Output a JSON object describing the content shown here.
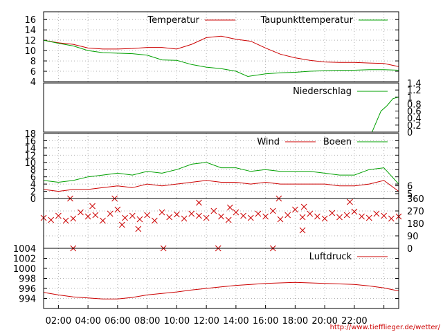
{
  "colors": {
    "red": "#cc0000",
    "green": "#00a000",
    "grid": "#b0b0b0",
    "frame": "#000000"
  },
  "footer": {
    "url": "http://www.tiefflieger.de/wetter/"
  },
  "chart_data": [
    {
      "id": "temperature",
      "type": "line",
      "title": "",
      "x_range": [
        0,
        24
      ],
      "ylim": [
        4,
        17.5
      ],
      "y_ticks": [
        4,
        6,
        8,
        10,
        12,
        14,
        16
      ],
      "grid": true,
      "legend_position": "top",
      "series": [
        {
          "name": "Temperatur",
          "color": "#cc0000",
          "points": [
            [
              0,
              12
            ],
            [
              1,
              11.5
            ],
            [
              2,
              11.2
            ],
            [
              3,
              10.5
            ],
            [
              4,
              10.3
            ],
            [
              5,
              10.3
            ],
            [
              6,
              10.4
            ],
            [
              7,
              10.6
            ],
            [
              8,
              10.6
            ],
            [
              9,
              10.3
            ],
            [
              10,
              11.2
            ],
            [
              11,
              12.5
            ],
            [
              12,
              12.8
            ],
            [
              13,
              12.2
            ],
            [
              14,
              11.8
            ],
            [
              15,
              10.5
            ],
            [
              16,
              9.3
            ],
            [
              17,
              8.6
            ],
            [
              18,
              8.1
            ],
            [
              19,
              7.8
            ],
            [
              20,
              7.7
            ],
            [
              21,
              7.7
            ],
            [
              22,
              7.6
            ],
            [
              23,
              7.5
            ],
            [
              24,
              6.9
            ]
          ]
        },
        {
          "name": "Taupunkttemperatur",
          "color": "#00a000",
          "points": [
            [
              0,
              12
            ],
            [
              1,
              11.4
            ],
            [
              2,
              10.9
            ],
            [
              3,
              10.0
            ],
            [
              4,
              9.6
            ],
            [
              5,
              9.5
            ],
            [
              6,
              9.4
            ],
            [
              7,
              9.1
            ],
            [
              8,
              8.2
            ],
            [
              9,
              8.1
            ],
            [
              10,
              7.3
            ],
            [
              11,
              6.8
            ],
            [
              12,
              6.5
            ],
            [
              13,
              6.0
            ],
            [
              13.8,
              5.0
            ],
            [
              15,
              5.5
            ],
            [
              16,
              5.7
            ],
            [
              17,
              5.8
            ],
            [
              18,
              6.0
            ],
            [
              19,
              6.1
            ],
            [
              20,
              6.2
            ],
            [
              21,
              6.2
            ],
            [
              22,
              6.3
            ],
            [
              23,
              6.3
            ],
            [
              24,
              6.2
            ]
          ]
        }
      ]
    },
    {
      "id": "precipitation",
      "type": "line",
      "title": "",
      "x_range": [
        0,
        24
      ],
      "ylim": [
        0,
        1.4
      ],
      "y_ticks": [
        0,
        0.2,
        0.4,
        0.6,
        0.8,
        1,
        1.2,
        1.4
      ],
      "y_tick_labels": [
        "0",
        "0.2",
        "0.4",
        "0.6",
        "0.8",
        "1",
        "1.2",
        "1.4"
      ],
      "grid": false,
      "legend_position": "top-right",
      "series": [
        {
          "name": "Niederschlag",
          "color": "#00a000",
          "points": [
            [
              0,
              0
            ],
            [
              22.2,
              0
            ],
            [
              22.5,
              0.3
            ],
            [
              22.8,
              0.6
            ],
            [
              23.2,
              0.75
            ],
            [
              23.6,
              0.95
            ],
            [
              24,
              1.0
            ]
          ]
        }
      ]
    },
    {
      "id": "wind",
      "type": "line",
      "title": "",
      "x_range": [
        0,
        24
      ],
      "ylim": [
        0,
        18
      ],
      "y_ticks": [
        0,
        2,
        4,
        6,
        8,
        10,
        12,
        14,
        16,
        18
      ],
      "y2_ticks": [
        5,
        6
      ],
      "grid": true,
      "legend_position": "top",
      "series": [
        {
          "name": "Wind",
          "color": "#cc0000",
          "points": [
            [
              0,
              2.5
            ],
            [
              1,
              2
            ],
            [
              2,
              2.5
            ],
            [
              3,
              2.5
            ],
            [
              4,
              3
            ],
            [
              5,
              3.5
            ],
            [
              6,
              3
            ],
            [
              7,
              4
            ],
            [
              8,
              3.5
            ],
            [
              9,
              4
            ],
            [
              10,
              4.5
            ],
            [
              11,
              5
            ],
            [
              12,
              4.5
            ],
            [
              13,
              4.5
            ],
            [
              14,
              4
            ],
            [
              15,
              4.5
            ],
            [
              16,
              4
            ],
            [
              17,
              4
            ],
            [
              18,
              4
            ],
            [
              19,
              4
            ],
            [
              20,
              3.5
            ],
            [
              21,
              3.5
            ],
            [
              22,
              4
            ],
            [
              23,
              5
            ],
            [
              24,
              2
            ]
          ]
        },
        {
          "name": "Boeen",
          "color": "#00a000",
          "points": [
            [
              0,
              5
            ],
            [
              1,
              4.5
            ],
            [
              2,
              5
            ],
            [
              3,
              6
            ],
            [
              4,
              6.5
            ],
            [
              5,
              7
            ],
            [
              6,
              6.5
            ],
            [
              7,
              7.5
            ],
            [
              8,
              7
            ],
            [
              9,
              8
            ],
            [
              10,
              9.5
            ],
            [
              11,
              10
            ],
            [
              12,
              8.5
            ],
            [
              13,
              8.5
            ],
            [
              14,
              7.5
            ],
            [
              15,
              8
            ],
            [
              16,
              7.5
            ],
            [
              17,
              7.5
            ],
            [
              18,
              7.5
            ],
            [
              19,
              7
            ],
            [
              20,
              6.5
            ],
            [
              21,
              6.5
            ],
            [
              22,
              8
            ],
            [
              23,
              8.5
            ],
            [
              24,
              4
            ]
          ]
        }
      ]
    },
    {
      "id": "wind-direction",
      "type": "scatter",
      "title": "",
      "x_range": [
        0,
        24
      ],
      "ylim": [
        0,
        360
      ],
      "y2_ticks": [
        0,
        90,
        180,
        270,
        360
      ],
      "grid": true,
      "series": [
        {
          "name": "",
          "color": "#cc0000",
          "points": [
            [
              0,
              220
            ],
            [
              0.5,
              205
            ],
            [
              1,
              235
            ],
            [
              1.5,
              200
            ],
            [
              2,
              215
            ],
            [
              2.5,
              260
            ],
            [
              3,
              230
            ],
            [
              3.5,
              240
            ],
            [
              4,
              200
            ],
            [
              4.5,
              250
            ],
            [
              5,
              280
            ],
            [
              5.5,
              220
            ],
            [
              6,
              235
            ],
            [
              6.5,
              210
            ],
            [
              7,
              240
            ],
            [
              7.5,
              200
            ],
            [
              8,
              260
            ],
            [
              8.5,
              225
            ],
            [
              9,
              245
            ],
            [
              9.5,
              215
            ],
            [
              10,
              250
            ],
            [
              10.5,
              235
            ],
            [
              11,
              220
            ],
            [
              11.5,
              270
            ],
            [
              12,
              230
            ],
            [
              12.5,
              205
            ],
            [
              13,
              260
            ],
            [
              13.5,
              235
            ],
            [
              14,
              220
            ],
            [
              14.5,
              250
            ],
            [
              15,
              230
            ],
            [
              15.5,
              270
            ],
            [
              16,
              210
            ],
            [
              16.5,
              240
            ],
            [
              17,
              280
            ],
            [
              17.5,
              225
            ],
            [
              18,
              250
            ],
            [
              18.5,
              230
            ],
            [
              19,
              215
            ],
            [
              19.5,
              255
            ],
            [
              20,
              225
            ],
            [
              20.5,
              240
            ],
            [
              21,
              265
            ],
            [
              21.5,
              230
            ],
            [
              22,
              220
            ],
            [
              22.5,
              250
            ],
            [
              23,
              235
            ],
            [
              23.5,
              215
            ],
            [
              24,
              230
            ],
            [
              1.8,
              360
            ],
            [
              4.8,
              360
            ],
            [
              10.5,
              330
            ],
            [
              11.8,
              0
            ],
            [
              15.9,
              360
            ],
            [
              17.6,
              300
            ],
            [
              17.5,
              130
            ],
            [
              5.3,
              170
            ],
            [
              2,
              0
            ],
            [
              6.4,
              140
            ],
            [
              8.1,
              0
            ],
            [
              15.5,
              0
            ],
            [
              12.6,
              295
            ],
            [
              3.3,
              305
            ],
            [
              20.7,
              335
            ]
          ]
        }
      ]
    },
    {
      "id": "pressure",
      "type": "line",
      "title": "",
      "x_range": [
        0,
        24
      ],
      "ylim": [
        992,
        1004
      ],
      "y_ticks": [
        994,
        996,
        998,
        1000,
        1002,
        1004
      ],
      "grid": true,
      "legend_position": "top-right",
      "x_ticks": [
        1,
        3,
        5,
        7,
        9,
        11,
        13,
        15,
        17,
        19,
        21,
        23
      ],
      "x_tick_labels": [
        "02:00",
        "04:00",
        "06:00",
        "08:00",
        "10:00",
        "12:00",
        "14:00",
        "16:00",
        "18:00",
        "20:00",
        "22:00",
        ""
      ],
      "series": [
        {
          "name": "Luftdruck",
          "color": "#cc0000",
          "points": [
            [
              0,
              995.2
            ],
            [
              1,
              994.7
            ],
            [
              2,
              994.3
            ],
            [
              3,
              994.1
            ],
            [
              4,
              993.9
            ],
            [
              5,
              993.9
            ],
            [
              6,
              994.2
            ],
            [
              7,
              994.7
            ],
            [
              8,
              995.0
            ],
            [
              9,
              995.3
            ],
            [
              10,
              995.7
            ],
            [
              11,
              996.0
            ],
            [
              12,
              996.3
            ],
            [
              13,
              996.6
            ],
            [
              14,
              996.8
            ],
            [
              15,
              997.0
            ],
            [
              16,
              997.1
            ],
            [
              17,
              997.2
            ],
            [
              18,
              997.1
            ],
            [
              19,
              997.0
            ],
            [
              20,
              996.9
            ],
            [
              21,
              996.8
            ],
            [
              22,
              996.5
            ],
            [
              23,
              996.1
            ],
            [
              24,
              995.5
            ]
          ]
        }
      ]
    }
  ]
}
